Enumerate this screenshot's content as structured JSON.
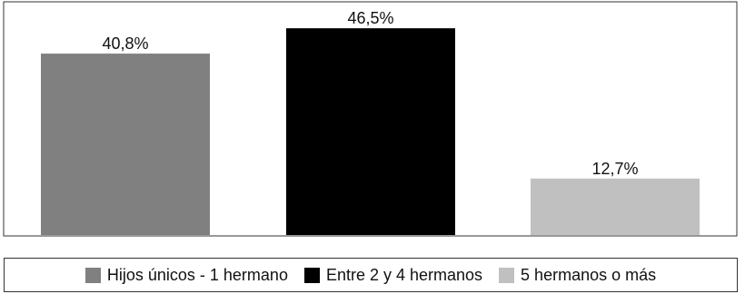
{
  "chart_data": {
    "type": "bar",
    "categories": [
      "Hijos únicos - 1 hermano",
      "Entre 2 y 4 hermanos",
      "5 hermanos o más"
    ],
    "values": [
      40.8,
      46.5,
      12.7
    ],
    "value_labels": [
      "40,8%",
      "46,5%",
      "12,7%"
    ],
    "colors": [
      "#808080",
      "#000000",
      "#c0c0c0"
    ],
    "ylim": [
      0,
      50
    ],
    "grid": false,
    "legend_position": "bottom"
  }
}
